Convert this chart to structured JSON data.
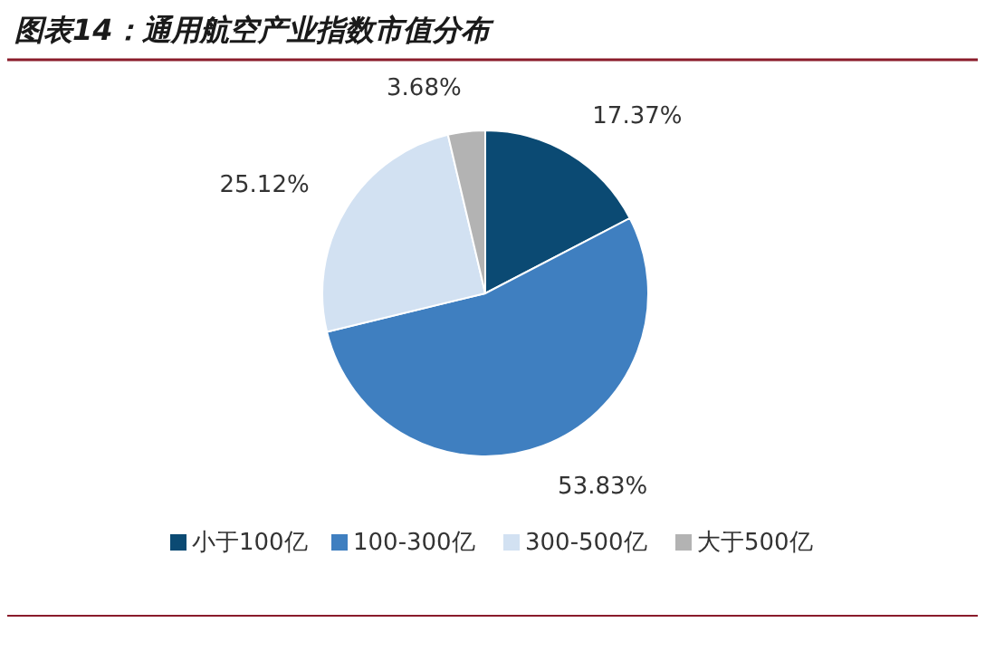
{
  "chart_data": {
    "type": "pie",
    "title": "图表14：通用航空产业指数市值分布",
    "categories": [
      "小于100亿",
      "100-300亿",
      "300-500亿",
      "大于500亿"
    ],
    "values": [
      17.37,
      53.83,
      25.12,
      3.68
    ],
    "colors": [
      "#0b4a73",
      "#3f7fc0",
      "#d2e1f2",
      "#b3b3b3"
    ],
    "value_labels": [
      "17.37%",
      "53.83%",
      "25.12%",
      "3.68%"
    ],
    "legend": "bottom"
  }
}
